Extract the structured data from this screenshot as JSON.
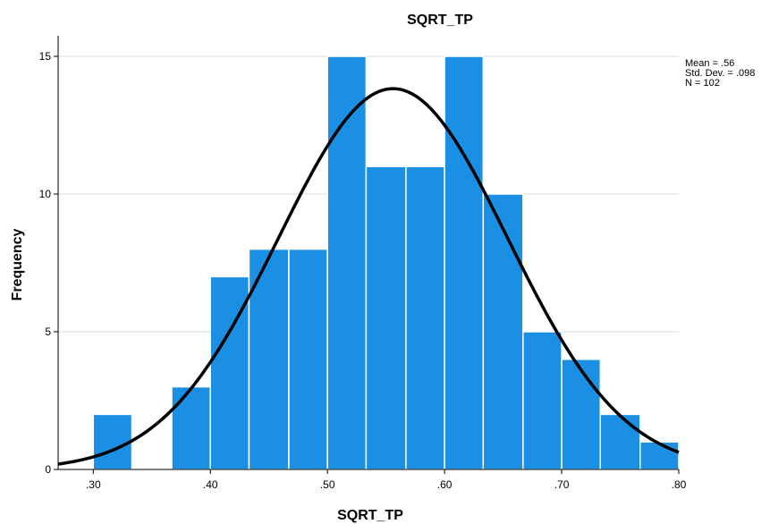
{
  "chart_data": {
    "type": "bar",
    "title": "SQRT_TP",
    "xlabel": "SQRT_TP",
    "ylabel": "Frequency",
    "xlim": [
      0.27,
      0.8
    ],
    "ylim": [
      0,
      15
    ],
    "x_ticks": [
      0.3,
      0.4,
      0.5,
      0.6,
      0.7,
      0.8
    ],
    "x_tick_labels": [
      ".30",
      ".40",
      ".50",
      ".60",
      ".70",
      ".80"
    ],
    "y_ticks": [
      0,
      5,
      10,
      15
    ],
    "y_tick_labels": [
      "0",
      "5",
      "10",
      "15"
    ],
    "grid": "horizontal",
    "bin_width": 0.0333,
    "bins": [
      {
        "start": 0.3,
        "end": 0.333,
        "count": 2
      },
      {
        "start": 0.333,
        "end": 0.367,
        "count": 0
      },
      {
        "start": 0.367,
        "end": 0.4,
        "count": 3
      },
      {
        "start": 0.4,
        "end": 0.433,
        "count": 7
      },
      {
        "start": 0.433,
        "end": 0.467,
        "count": 8
      },
      {
        "start": 0.467,
        "end": 0.5,
        "count": 8
      },
      {
        "start": 0.5,
        "end": 0.533,
        "count": 15
      },
      {
        "start": 0.533,
        "end": 0.567,
        "count": 11
      },
      {
        "start": 0.567,
        "end": 0.6,
        "count": 11
      },
      {
        "start": 0.6,
        "end": 0.633,
        "count": 15
      },
      {
        "start": 0.633,
        "end": 0.667,
        "count": 10
      },
      {
        "start": 0.667,
        "end": 0.7,
        "count": 5
      },
      {
        "start": 0.7,
        "end": 0.733,
        "count": 4
      },
      {
        "start": 0.733,
        "end": 0.767,
        "count": 2
      },
      {
        "start": 0.767,
        "end": 0.8,
        "count": 1
      }
    ],
    "normal_curve": {
      "mean": 0.556,
      "sd": 0.098,
      "n": 102
    },
    "stats": {
      "mean_label": "Mean = .56",
      "sd_label": "Std. Dev. = .098",
      "n_label": "N = 102"
    },
    "colors": {
      "bar": "#1a8fe3",
      "bar_edge": "#ffffff",
      "curve": "#000000",
      "grid": "#d9d9d9",
      "axis": "#000000"
    }
  }
}
